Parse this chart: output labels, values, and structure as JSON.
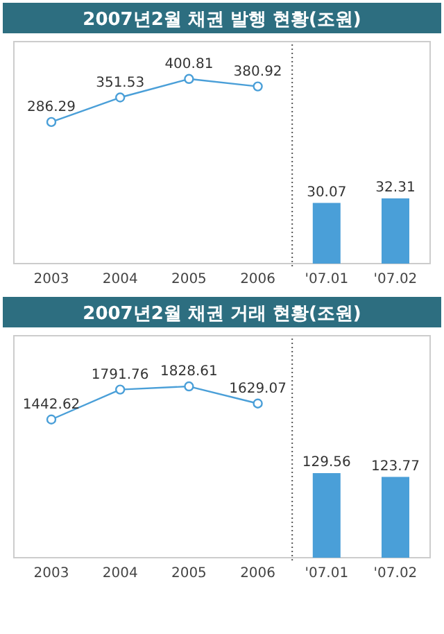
{
  "chart_data": [
    {
      "type": "line",
      "title": "2007년2월 채권 발행 현황(조원)",
      "categories": [
        "2003",
        "2004",
        "2005",
        "2006",
        "'07.01",
        "'07.02"
      ],
      "ylim": [
        -90,
        500
      ],
      "y2lim": [
        0,
        110
      ],
      "data_labels": true,
      "marker": "circle",
      "tick_labels": "x",
      "series": [
        {
          "color": "#4a9fd8",
          "values": [
            286.29,
            351.53,
            400.81,
            380.92,
            null,
            null
          ]
        },
        {
          "type": "bar",
          "axis": "y2",
          "color": "#4a9fd8",
          "values": [
            null,
            null,
            null,
            null,
            30.07,
            32.31
          ]
        }
      ]
    },
    {
      "type": "line",
      "title": "2007년2월 채권 거래 현황(조원)",
      "categories": [
        "2003",
        "2004",
        "2005",
        "2006",
        "'07.01",
        "'07.02"
      ],
      "ylim": [
        -170,
        2420
      ],
      "y2lim": [
        0,
        340
      ],
      "data_labels": true,
      "marker": "circle",
      "tick_labels": "x",
      "series": [
        {
          "color": "#4a9fd8",
          "values": [
            1442.62,
            1791.76,
            1828.61,
            1629.07,
            null,
            null
          ]
        },
        {
          "type": "bar",
          "axis": "y2",
          "color": "#4a9fd8",
          "values": [
            null,
            null,
            null,
            null,
            129.56,
            123.77
          ]
        }
      ]
    }
  ]
}
